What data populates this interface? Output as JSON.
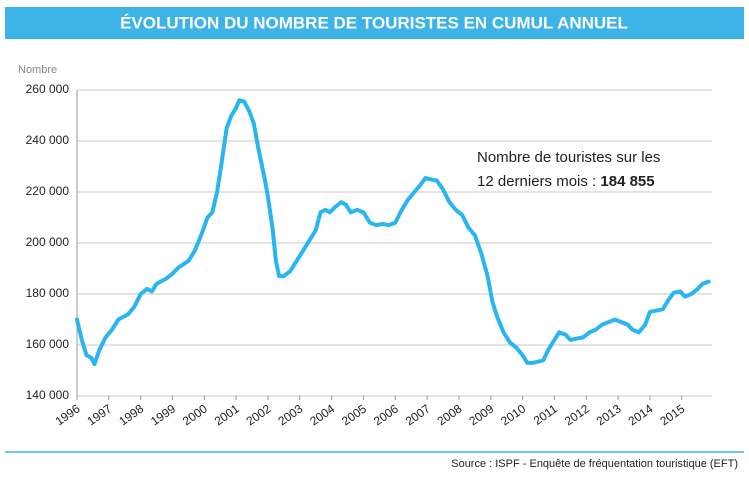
{
  "chart_data": {
    "type": "line",
    "title": "ÉVOLUTION DU NOMBRE DE TOURISTES EN CUMUL ANNUEL",
    "y_label": "Nombre",
    "annotation": {
      "line1": "Nombre de touristes sur les",
      "line2": "12 derniers mois :",
      "highlight": "184 855"
    },
    "source": "Source : ISPF - Enquête de fréquentation touristique (EFT)",
    "x": [
      1996.0,
      1996.15,
      1996.3,
      1996.45,
      1996.55,
      1996.7,
      1996.9,
      1997.1,
      1997.3,
      1997.6,
      1997.8,
      1998.0,
      1998.2,
      1998.35,
      1998.5,
      1998.8,
      1999.0,
      1999.2,
      1999.5,
      1999.7,
      1999.9,
      2000.1,
      2000.25,
      2000.4,
      2000.55,
      2000.7,
      2000.85,
      2001.0,
      2001.1,
      2001.25,
      2001.4,
      2001.55,
      2001.7,
      2001.9,
      2002.0,
      2002.15,
      2002.25,
      2002.35,
      2002.5,
      2002.7,
      2002.9,
      2003.1,
      2003.3,
      2003.5,
      2003.65,
      2003.8,
      2003.95,
      2004.1,
      2004.3,
      2004.45,
      2004.6,
      2004.8,
      2005.0,
      2005.2,
      2005.4,
      2005.6,
      2005.8,
      2006.0,
      2006.2,
      2006.4,
      2006.6,
      2006.8,
      2006.95,
      2007.1,
      2007.3,
      2007.5,
      2007.7,
      2007.9,
      2008.1,
      2008.3,
      2008.5,
      2008.7,
      2008.9,
      2009.05,
      2009.2,
      2009.4,
      2009.6,
      2009.8,
      2010.0,
      2010.15,
      2010.3,
      2010.5,
      2010.65,
      2010.8,
      2011.0,
      2011.15,
      2011.35,
      2011.5,
      2011.7,
      2011.9,
      2012.1,
      2012.3,
      2012.5,
      2012.7,
      2012.9,
      2013.1,
      2013.3,
      2013.45,
      2013.65,
      2013.85,
      2014.0,
      2014.2,
      2014.4,
      2014.6,
      2014.75,
      2014.95,
      2015.1,
      2015.3,
      2015.5,
      2015.65,
      2015.85
    ],
    "series": [
      {
        "name": "Touristes",
        "color": "#29b6f0",
        "values": [
          170000,
          162000,
          156000,
          155000,
          152500,
          158000,
          163000,
          166000,
          170000,
          172000,
          175000,
          180000,
          182000,
          181000,
          184000,
          186000,
          188000,
          190500,
          193000,
          197000,
          203000,
          210000,
          212000,
          220000,
          232000,
          245000,
          250000,
          253000,
          256000,
          255500,
          252000,
          247000,
          237000,
          225000,
          218000,
          205000,
          193000,
          187000,
          187000,
          189000,
          193000,
          197000,
          201000,
          205000,
          212000,
          213000,
          212000,
          214000,
          216000,
          215000,
          212000,
          213000,
          212000,
          208000,
          207000,
          207500,
          207000,
          208000,
          213000,
          217000,
          220000,
          223000,
          225500,
          225000,
          224500,
          221000,
          216000,
          213000,
          211000,
          206000,
          203000,
          196000,
          187000,
          177000,
          171000,
          165000,
          161000,
          159000,
          156000,
          153000,
          153000,
          153500,
          154000,
          158000,
          162000,
          165000,
          164000,
          162000,
          162500,
          163000,
          165000,
          166000,
          168000,
          169000,
          170000,
          169000,
          168000,
          166000,
          165000,
          168000,
          173000,
          173500,
          174000,
          178000,
          180500,
          181000,
          179000,
          180000,
          182000,
          184000,
          184855
        ]
      }
    ],
    "xlim": [
      1996,
      2015.95
    ],
    "xticks": [
      1996,
      1997,
      1998,
      1999,
      2000,
      2001,
      2002,
      2003,
      2004,
      2005,
      2006,
      2007,
      2008,
      2009,
      2010,
      2011,
      2012,
      2013,
      2014,
      2015
    ],
    "ylim": [
      140000,
      260000
    ],
    "yticks": [
      {
        "value": 140000,
        "label": "140 000"
      },
      {
        "value": 160000,
        "label": "160 000"
      },
      {
        "value": 180000,
        "label": "180 000"
      },
      {
        "value": 200000,
        "label": "200 000"
      },
      {
        "value": 220000,
        "label": "220 000"
      },
      {
        "value": 240000,
        "label": "240 000"
      },
      {
        "value": 260000,
        "label": "260 000"
      }
    ],
    "grid": true
  }
}
